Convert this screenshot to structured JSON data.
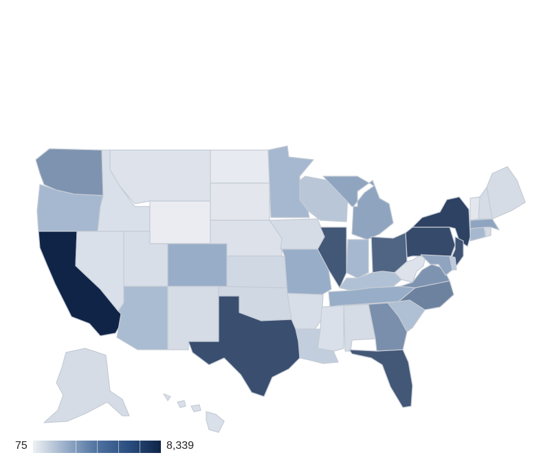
{
  "legend": {
    "min_label": "75",
    "max_label": "8,339",
    "min": 75,
    "max": 8339
  },
  "colors": {
    "low": "#eceef2",
    "high": "#102447",
    "border": "#c4cbd5"
  },
  "states": [
    {
      "id": "WA",
      "level": 0.48
    },
    {
      "id": "OR",
      "level": 0.3
    },
    {
      "id": "CA",
      "level": 1.0
    },
    {
      "id": "NV",
      "level": 0.08
    },
    {
      "id": "ID",
      "level": 0.08
    },
    {
      "id": "MT",
      "level": 0.06
    },
    {
      "id": "WY",
      "level": 0.01
    },
    {
      "id": "UT",
      "level": 0.09
    },
    {
      "id": "CO",
      "level": 0.36
    },
    {
      "id": "AZ",
      "level": 0.28
    },
    {
      "id": "NM",
      "level": 0.1
    },
    {
      "id": "ND",
      "level": 0.02
    },
    {
      "id": "SD",
      "level": 0.04
    },
    {
      "id": "NE",
      "level": 0.07
    },
    {
      "id": "KS",
      "level": 0.12
    },
    {
      "id": "OK",
      "level": 0.12
    },
    {
      "id": "TX",
      "level": 0.8
    },
    {
      "id": "MN",
      "level": 0.3
    },
    {
      "id": "IA",
      "level": 0.1
    },
    {
      "id": "MO",
      "level": 0.36
    },
    {
      "id": "AR",
      "level": 0.09
    },
    {
      "id": "LA",
      "level": 0.18
    },
    {
      "id": "WI",
      "level": 0.22
    },
    {
      "id": "IL",
      "level": 0.76
    },
    {
      "id": "MI",
      "level": 0.4
    },
    {
      "id": "IN",
      "level": 0.3
    },
    {
      "id": "OH",
      "level": 0.7
    },
    {
      "id": "KY",
      "level": 0.25
    },
    {
      "id": "TN",
      "level": 0.36
    },
    {
      "id": "MS",
      "level": 0.08
    },
    {
      "id": "AL",
      "level": 0.1
    },
    {
      "id": "GA",
      "level": 0.5
    },
    {
      "id": "FL",
      "level": 0.76
    },
    {
      "id": "SC",
      "level": 0.26
    },
    {
      "id": "NC",
      "level": 0.56
    },
    {
      "id": "VA",
      "level": 0.48
    },
    {
      "id": "WV",
      "level": 0.06
    },
    {
      "id": "PA",
      "level": 0.82
    },
    {
      "id": "NY",
      "level": 0.86
    },
    {
      "id": "NJ",
      "level": 0.78
    },
    {
      "id": "MD",
      "level": 0.4
    },
    {
      "id": "DE",
      "level": 0.2
    },
    {
      "id": "CT",
      "level": 0.3
    },
    {
      "id": "MA",
      "level": 0.4
    },
    {
      "id": "VT",
      "level": 0.04
    },
    {
      "id": "NH",
      "level": 0.1
    },
    {
      "id": "ME",
      "level": 0.1
    },
    {
      "id": "RI",
      "level": 0.1
    },
    {
      "id": "AK",
      "level": 0.1
    },
    {
      "id": "HI",
      "level": 0.08
    }
  ]
}
